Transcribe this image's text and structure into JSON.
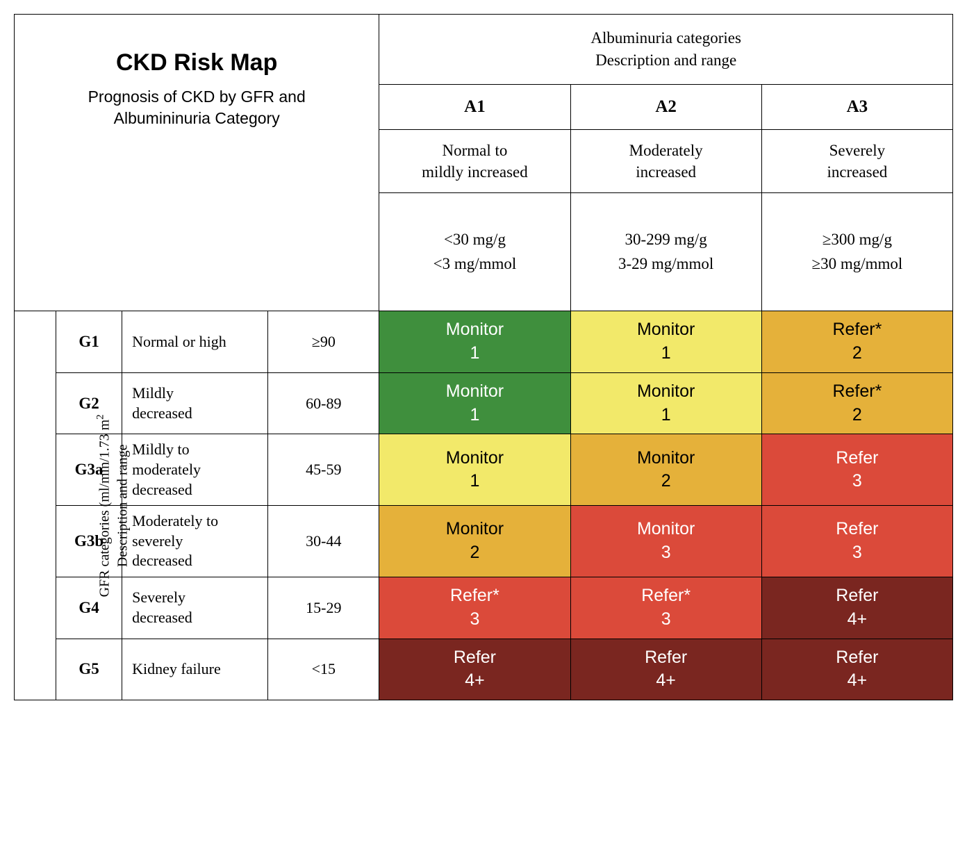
{
  "title": "CKD Risk Map",
  "subtitle_l1": "Prognosis of CKD by GFR and",
  "subtitle_l2": "Albumininuria Category",
  "alb_header_l1": "Albuminuria categories",
  "alb_header_l2": "Description and range",
  "gfr_label_l1": "GFR categories (ml/min/1.73 m",
  "gfr_label_sup": "2",
  "gfr_label_l2": "Description and range",
  "columns": {
    "a1": {
      "code": "A1",
      "desc_l1": "Normal to",
      "desc_l2": "mildly increased",
      "range_l1": "<30 mg/g",
      "range_l2": "<3 mg/mmol"
    },
    "a2": {
      "code": "A2",
      "desc_l1": "Moderately",
      "desc_l2": "increased",
      "range_l1": "30-299 mg/g",
      "range_l2": "3-29 mg/mmol"
    },
    "a3": {
      "code": "A3",
      "desc_l1": "Severely",
      "desc_l2": "increased",
      "range_l1": "≥300 mg/g",
      "range_l2": "≥30 mg/mmol"
    }
  },
  "rows": {
    "g1": {
      "code": "G1",
      "desc": "Normal or high",
      "range": "≥90"
    },
    "g2": {
      "code": "G2",
      "desc_l1": "Mildly",
      "desc_l2": "decreased",
      "range": "60-89"
    },
    "g3a": {
      "code": "G3a",
      "desc_l1": "Mildly to",
      "desc_l2": "moderately",
      "desc_l3": "decreased",
      "range": "45-59"
    },
    "g3b": {
      "code": "G3b",
      "desc_l1": "Moderately to",
      "desc_l2": "severely",
      "desc_l3": "decreased",
      "range": "30-44"
    },
    "g4": {
      "code": "G4",
      "desc_l1": "Severely",
      "desc_l2": "decreased",
      "range": "15-29"
    },
    "g5": {
      "code": "G5",
      "desc": "Kidney failure",
      "range": "<15"
    }
  },
  "cells": {
    "g1_a1": {
      "action": "Monitor",
      "num": "1",
      "color": "green"
    },
    "g1_a2": {
      "action": "Monitor",
      "num": "1",
      "color": "yellow"
    },
    "g1_a3": {
      "action": "Refer*",
      "num": "2",
      "color": "orange"
    },
    "g2_a1": {
      "action": "Monitor",
      "num": "1",
      "color": "green"
    },
    "g2_a2": {
      "action": "Monitor",
      "num": "1",
      "color": "yellow"
    },
    "g2_a3": {
      "action": "Refer*",
      "num": "2",
      "color": "orange"
    },
    "g3a_a1": {
      "action": "Monitor",
      "num": "1",
      "color": "yellow"
    },
    "g3a_a2": {
      "action": "Monitor",
      "num": "2",
      "color": "orange"
    },
    "g3a_a3": {
      "action": "Refer",
      "num": "3",
      "color": "red"
    },
    "g3b_a1": {
      "action": "Monitor",
      "num": "2",
      "color": "orange"
    },
    "g3b_a2": {
      "action": "Monitor",
      "num": "3",
      "color": "red"
    },
    "g3b_a3": {
      "action": "Refer",
      "num": "3",
      "color": "red"
    },
    "g4_a1": {
      "action": "Refer*",
      "num": "3",
      "color": "red"
    },
    "g4_a2": {
      "action": "Refer*",
      "num": "3",
      "color": "red"
    },
    "g4_a3": {
      "action": "Refer",
      "num": "4+",
      "color": "darkred"
    },
    "g5_a1": {
      "action": "Refer",
      "num": "4+",
      "color": "darkred"
    },
    "g5_a2": {
      "action": "Refer",
      "num": "4+",
      "color": "darkred"
    },
    "g5_a3": {
      "action": "Refer",
      "num": "4+",
      "color": "darkred"
    }
  },
  "palette": {
    "green": "#3f8f3d",
    "yellow": "#f2e96a",
    "orange": "#e5b13a",
    "red": "#db4a3a",
    "darkred": "#7a2620"
  }
}
